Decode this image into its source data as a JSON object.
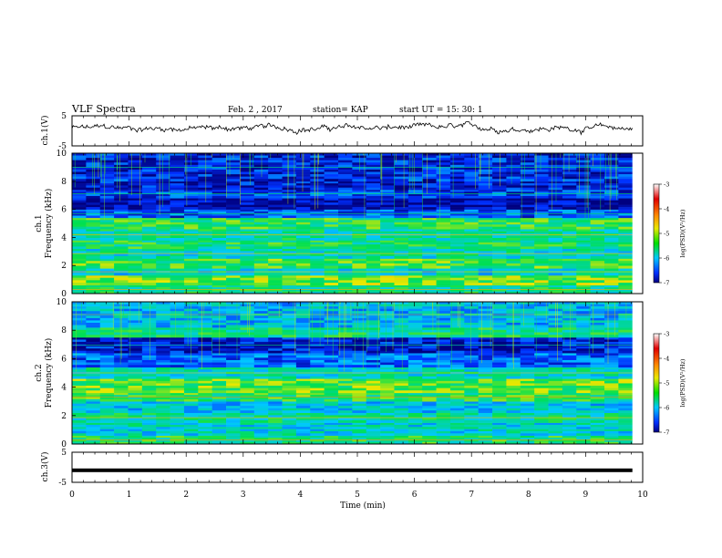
{
  "header": {
    "title": "VLF Spectra",
    "date": "Feb. 2 , 2017",
    "station": "station= KAP",
    "start": "start UT = 15: 30: 1"
  },
  "chart_data": [
    {
      "type": "line",
      "panel": "ch1-waveform",
      "ylabel": "ch.1(V)",
      "ylim": [
        -5,
        5
      ],
      "yticks": [
        "5",
        "-5"
      ],
      "xlim": [
        0,
        10
      ],
      "x_end": 9.82,
      "trace_level": 0.9,
      "trace_color": "#000000"
    },
    {
      "type": "heatmap",
      "panel": "ch1-spectrogram",
      "ylabel_top": "ch.1",
      "ylabel": "Frequency (kHz)",
      "ylim": [
        0,
        10
      ],
      "yticks": [
        "0",
        "2",
        "4",
        "6",
        "8",
        "10"
      ],
      "xlim": [
        0,
        10
      ],
      "x_end": 9.82,
      "bands": [
        {
          "f": [
            0.0,
            0.6
          ],
          "level": -5.4
        },
        {
          "f": [
            0.6,
            1.3
          ],
          "level": -4.9
        },
        {
          "f": [
            1.3,
            1.8
          ],
          "level": -5.7
        },
        {
          "f": [
            1.8,
            2.5
          ],
          "level": -5.1
        },
        {
          "f": [
            2.5,
            3.2
          ],
          "level": -5.6
        },
        {
          "f": [
            3.2,
            3.8
          ],
          "level": -5.3
        },
        {
          "f": [
            3.8,
            4.6
          ],
          "level": -5.5
        },
        {
          "f": [
            4.6,
            5.4
          ],
          "level": -5.2
        },
        {
          "f": [
            5.4,
            6.0
          ],
          "level": -6.4
        },
        {
          "f": [
            6.0,
            6.8
          ],
          "level": -6.9
        },
        {
          "f": [
            6.8,
            7.4
          ],
          "level": -6.5
        },
        {
          "f": [
            7.4,
            8.0
          ],
          "level": -6.7
        },
        {
          "f": [
            8.0,
            10.0
          ],
          "level": -6.6
        }
      ],
      "colorbar": {
        "label": "log(PSD)(V²/Hz)",
        "ticks": [
          "-3",
          "-4",
          "-5",
          "-6",
          "-7"
        ],
        "range": [
          -7,
          -3
        ]
      }
    },
    {
      "type": "heatmap",
      "panel": "ch2-spectrogram",
      "ylabel_top": "ch.2",
      "ylabel": "Frequency (kHz)",
      "ylim": [
        0,
        10
      ],
      "yticks": [
        "0",
        "2",
        "4",
        "6",
        "8",
        "10"
      ],
      "xlim": [
        0,
        10
      ],
      "x_end": 9.82,
      "bands": [
        {
          "f": [
            0.0,
            0.6
          ],
          "level": -5.3
        },
        {
          "f": [
            0.6,
            1.5
          ],
          "level": -5.7
        },
        {
          "f": [
            1.5,
            2.2
          ],
          "level": -5.5
        },
        {
          "f": [
            2.2,
            3.0
          ],
          "level": -5.8
        },
        {
          "f": [
            3.0,
            3.6
          ],
          "level": -5.2
        },
        {
          "f": [
            3.6,
            4.6
          ],
          "level": -5.0
        },
        {
          "f": [
            4.6,
            5.4
          ],
          "level": -5.6
        },
        {
          "f": [
            5.4,
            6.4
          ],
          "level": -6.3
        },
        {
          "f": [
            6.4,
            7.5
          ],
          "level": -6.7
        },
        {
          "f": [
            7.5,
            8.2
          ],
          "level": -5.4
        },
        {
          "f": [
            8.2,
            10.0
          ],
          "level": -5.9
        }
      ],
      "colorbar": {
        "label": "log(PSD)(V²/Hz)",
        "ticks": [
          "-3",
          "-4",
          "-5",
          "-6",
          "-7"
        ],
        "range": [
          -7,
          -3
        ]
      }
    },
    {
      "type": "line",
      "panel": "ch3-waveform",
      "ylabel": "ch.3(V)",
      "ylim": [
        -5,
        5
      ],
      "yticks": [
        "5",
        "-5"
      ],
      "xlim": [
        0,
        10
      ],
      "x_end": 9.82,
      "trace_level": -1.0,
      "trace_color": "#000000"
    }
  ],
  "x_axis": {
    "xlabel": "Time (min)",
    "ticks": [
      "0",
      "1",
      "2",
      "3",
      "4",
      "5",
      "6",
      "7",
      "8",
      "9",
      "10"
    ]
  }
}
